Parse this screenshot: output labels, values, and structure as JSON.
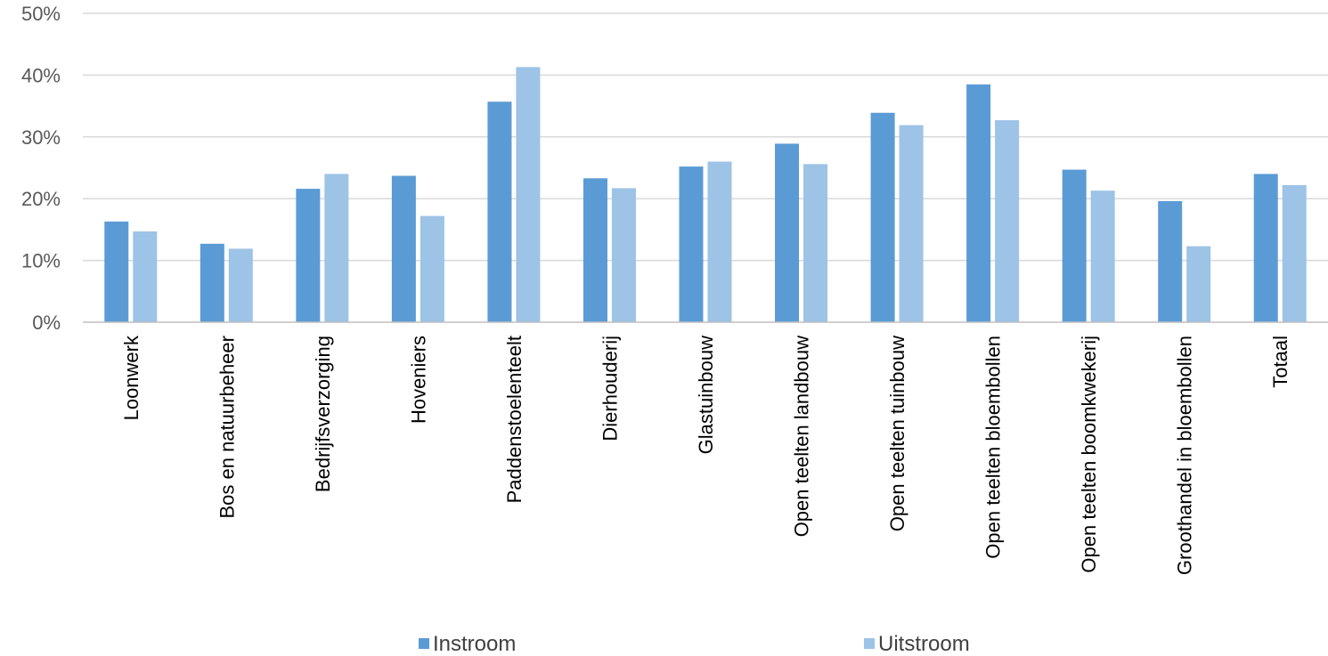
{
  "chart_data": {
    "type": "bar",
    "categories": [
      "Loonwerk",
      "Bos en natuurbeheer",
      "Bedrijfsverzorging",
      "Hoveniers",
      "Paddenstoelenteelt",
      "Dierhouderij",
      "Glastuinbouw",
      "Open teelten landbouw",
      "Open teelten tuinbouw",
      "Open teelten bloembollen",
      "Open teelten boomkwekerij",
      "Groothandel in bloembollen",
      "Totaal"
    ],
    "series": [
      {
        "name": "Instroom",
        "color": "#5b9bd5",
        "values": [
          16.3,
          12.7,
          21.6,
          23.7,
          35.7,
          23.3,
          25.2,
          28.9,
          33.9,
          38.5,
          24.7,
          19.6,
          24.0
        ]
      },
      {
        "name": "Uitstroom",
        "color": "#9dc3e6",
        "values": [
          14.7,
          11.9,
          24.0,
          17.2,
          41.3,
          21.7,
          26.0,
          25.6,
          31.9,
          32.7,
          21.3,
          12.3,
          22.2
        ]
      }
    ],
    "ylim": [
      0,
      50
    ],
    "yticks": [
      "0%",
      "10%",
      "20%",
      "30%",
      "40%",
      "50%"
    ],
    "grid": true,
    "legend_position": "bottom"
  }
}
